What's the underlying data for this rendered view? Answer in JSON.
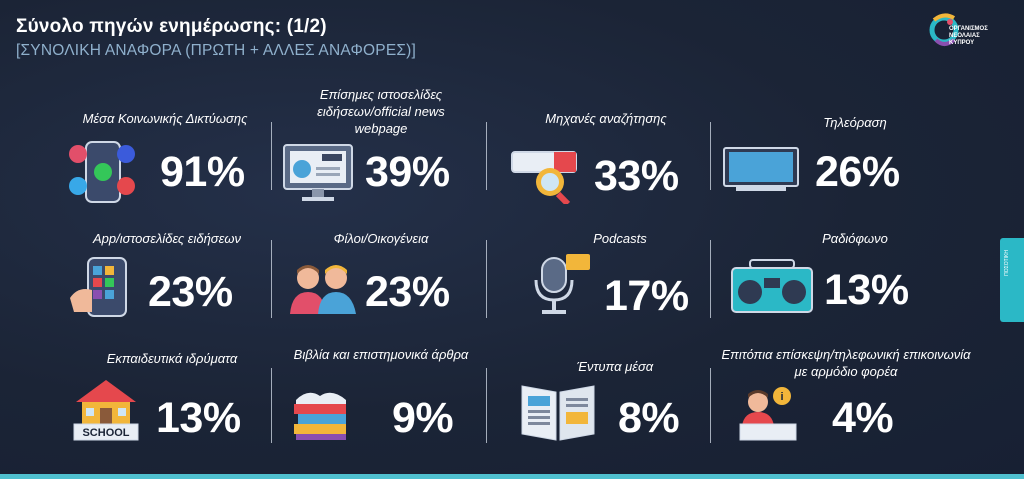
{
  "header": {
    "title": "Σύνολο πηγών ενημέρωσης: (1/2)",
    "subtitle": "[ΣΥΝΟΛΙΚΗ ΑΝΑΦΟΡΑ (ΠΡΩΤΗ + ΑΛΛΕΣ ΑΝΑΦΟΡΕΣ)]"
  },
  "logo": {
    "line1": "ΟΡΓΑΝΙΣΜΟΣ",
    "line2": "ΝΕΟΛΑΙΑΣ",
    "line3": "ΚΥΠΡΟΥ"
  },
  "sidetab": {
    "label": "ΠΟΣΟΤΙΚΗ"
  },
  "sources": [
    {
      "label": "Μέσα Κοινωνικής Δικτύωσης",
      "value": "91%",
      "icon": "social-media-icon"
    },
    {
      "label": "Επίσημες ιστοσελίδες ειδήσεων/official news webpage",
      "value": "39%",
      "icon": "news-monitor-icon"
    },
    {
      "label": "Μηχανές αναζήτησης",
      "value": "33%",
      "icon": "search-engine-icon"
    },
    {
      "label": "Τηλεόραση",
      "value": "26%",
      "icon": "television-icon"
    },
    {
      "label": "App/ιστοσελίδες ειδήσεων",
      "value": "23%",
      "icon": "smartphone-app-icon"
    },
    {
      "label": "Φίλοι/Οικογένεια",
      "value": "23%",
      "icon": "friends-family-icon"
    },
    {
      "label": "Podcasts",
      "value": "17%",
      "icon": "podcast-microphone-icon"
    },
    {
      "label": "Ραδιόφωνο",
      "value": "13%",
      "icon": "radio-icon"
    },
    {
      "label": "Εκπαιδευτικά ιδρύματα",
      "value": "13%",
      "icon": "school-icon",
      "sign": "SCHOOL"
    },
    {
      "label": "Βιβλία και επιστημονικά άρθρα",
      "value": "9%",
      "icon": "books-icon"
    },
    {
      "label": "Έντυπα μέσα",
      "value": "8%",
      "icon": "newspaper-icon"
    },
    {
      "label": "Επιτόπια επίσκεψη/τηλεφωνική επικοινωνία με αρμόδιο φορέα",
      "value": "4%",
      "icon": "info-desk-icon"
    }
  ]
}
